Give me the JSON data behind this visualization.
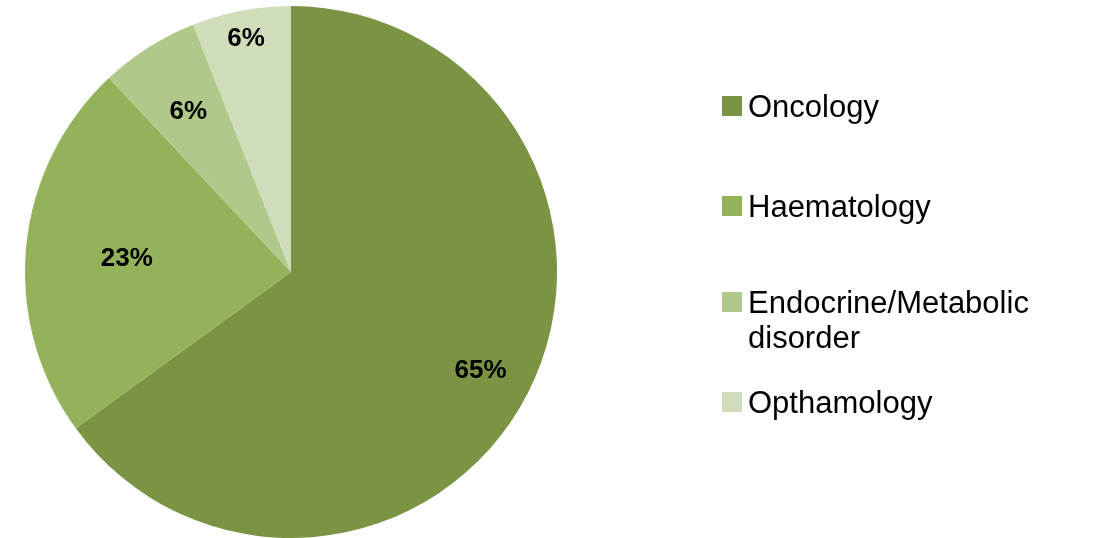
{
  "chart_data": {
    "type": "pie",
    "categories": [
      "Oncology",
      "Haematology",
      "Endocrine/Metabolic disorder",
      "Opthamology"
    ],
    "values": [
      65,
      23,
      6,
      6
    ],
    "colors": [
      "#7a9443",
      "#94b25a",
      "#b0c98a",
      "#d0ddbb"
    ],
    "value_labels": [
      "65%",
      "23%",
      "6%",
      "6%"
    ],
    "legend": "right"
  }
}
